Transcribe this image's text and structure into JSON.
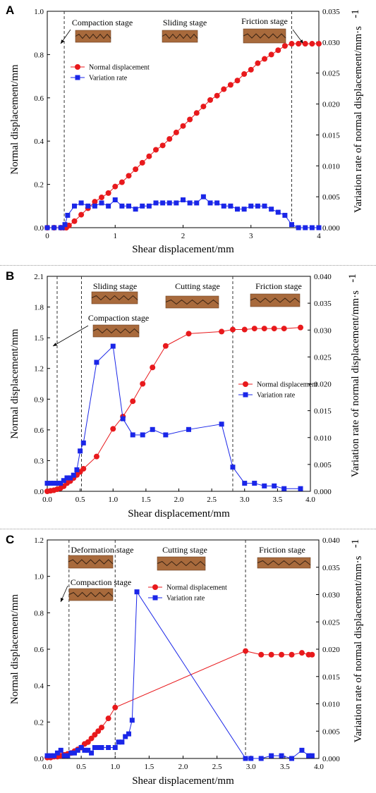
{
  "panels": [
    {
      "label": "A",
      "xlabel": "Shear displacement/mm",
      "ylabel_left": "Normal displacement/mm",
      "ylabel_right": "Variation rate of normal displacement/mm·s",
      "ylabel_right_sup": "-1",
      "stages": [
        "Compaction stage",
        "Sliding stage",
        "Friction stage"
      ],
      "legend": [
        "Normal displacement",
        "Variation rate"
      ]
    },
    {
      "label": "B",
      "xlabel": "Shear displacement/mm",
      "ylabel_left": "Normal displacement/mm",
      "ylabel_right": "Variation rate of normal displacement/mm·s",
      "ylabel_right_sup": "-1",
      "stages": [
        "Sliding stage",
        "Cutting stage",
        "Friction stage",
        "Compaction stage"
      ],
      "legend": [
        "Normal displacement",
        "Variation rate"
      ]
    },
    {
      "label": "C",
      "xlabel": "Shear displacement/mm",
      "ylabel_left": "Normal displacement/mm",
      "ylabel_right": "Variation rate of normal displacement/mm·s",
      "ylabel_right_sup": "-1",
      "stages": [
        "Deformation stage",
        "Cutting stage",
        "Friction stage",
        "Compaction stage"
      ],
      "legend": [
        "Normal displacement",
        "Variation rate"
      ]
    }
  ],
  "colors": {
    "normal": "#e8191c",
    "rate": "#1a26e8",
    "axis": "#000000",
    "rock": "#a86a3c"
  },
  "chart_data": [
    {
      "type": "line",
      "xlim": [
        0,
        4
      ],
      "ylim": [
        0,
        1.0
      ],
      "y2lim": [
        0,
        0.035
      ],
      "xticks": [
        "0",
        "1",
        "2",
        "3",
        "4"
      ],
      "yticks": [
        "0.0",
        "0.2",
        "0.4",
        "0.6",
        "0.8",
        "1.0"
      ],
      "y2ticks": [
        "0.000",
        "0.005",
        "0.010",
        "0.015",
        "0.020",
        "0.025",
        "0.030",
        "0.035"
      ],
      "stage_lines": [
        0.25,
        3.6
      ],
      "series": [
        {
          "name": "Normal displacement",
          "axis": "left",
          "x": [
            0,
            0.1,
            0.2,
            0.24,
            0.28,
            0.32,
            0.4,
            0.5,
            0.6,
            0.7,
            0.8,
            0.9,
            1.0,
            1.1,
            1.2,
            1.3,
            1.4,
            1.5,
            1.6,
            1.7,
            1.8,
            1.9,
            2.0,
            2.1,
            2.2,
            2.3,
            2.4,
            2.5,
            2.6,
            2.7,
            2.8,
            2.9,
            3.0,
            3.1,
            3.2,
            3.3,
            3.4,
            3.5,
            3.6,
            3.7,
            3.8,
            3.9,
            4.0
          ],
          "y": [
            0,
            0,
            0,
            0,
            0,
            0.01,
            0.03,
            0.06,
            0.09,
            0.12,
            0.14,
            0.16,
            0.19,
            0.21,
            0.24,
            0.27,
            0.3,
            0.33,
            0.36,
            0.38,
            0.41,
            0.44,
            0.47,
            0.5,
            0.53,
            0.56,
            0.59,
            0.61,
            0.64,
            0.66,
            0.68,
            0.71,
            0.73,
            0.76,
            0.78,
            0.8,
            0.82,
            0.84,
            0.85,
            0.85,
            0.85,
            0.85,
            0.85
          ]
        },
        {
          "name": "Variation rate",
          "axis": "right",
          "x": [
            0,
            0.1,
            0.2,
            0.22,
            0.26,
            0.3,
            0.4,
            0.5,
            0.6,
            0.7,
            0.8,
            0.9,
            1.0,
            1.1,
            1.2,
            1.3,
            1.4,
            1.5,
            1.6,
            1.7,
            1.8,
            1.9,
            2.0,
            2.1,
            2.2,
            2.3,
            2.4,
            2.5,
            2.6,
            2.7,
            2.8,
            2.9,
            3.0,
            3.1,
            3.2,
            3.3,
            3.4,
            3.5,
            3.6,
            3.7,
            3.8,
            3.9,
            4.0
          ],
          "y": [
            0,
            0,
            0,
            0,
            0.0005,
            0.002,
            0.0035,
            0.004,
            0.0035,
            0.0035,
            0.004,
            0.0035,
            0.0045,
            0.0035,
            0.0035,
            0.003,
            0.0035,
            0.0035,
            0.004,
            0.004,
            0.004,
            0.004,
            0.0045,
            0.004,
            0.004,
            0.005,
            0.004,
            0.004,
            0.0035,
            0.0035,
            0.003,
            0.003,
            0.0035,
            0.0035,
            0.0035,
            0.003,
            0.0025,
            0.002,
            0.0005,
            0,
            0,
            0,
            0
          ]
        }
      ]
    },
    {
      "type": "line",
      "xlim": [
        0,
        4.0
      ],
      "ylim": [
        0,
        2.1
      ],
      "y2lim": [
        0,
        0.04
      ],
      "xticks": [
        "0.0",
        "0.5",
        "1.0",
        "1.5",
        "2.0",
        "2.5",
        "3.0",
        "3.5",
        "4.0"
      ],
      "yticks": [
        "0.0",
        "0.3",
        "0.6",
        "0.9",
        "1.2",
        "1.5",
        "1.8",
        "2.1"
      ],
      "y2ticks": [
        "0.000",
        "0.005",
        "0.010",
        "0.015",
        "0.020",
        "0.025",
        "0.030",
        "0.035",
        "0.040"
      ],
      "stage_lines": [
        0.15,
        0.52,
        2.82
      ],
      "series": [
        {
          "name": "Normal displacement",
          "axis": "left",
          "x": [
            0,
            0.05,
            0.1,
            0.15,
            0.2,
            0.25,
            0.3,
            0.35,
            0.4,
            0.45,
            0.5,
            0.55,
            0.75,
            1.0,
            1.15,
            1.3,
            1.45,
            1.6,
            1.8,
            2.15,
            2.65,
            2.82,
            3.0,
            3.15,
            3.3,
            3.45,
            3.6,
            3.85
          ],
          "y": [
            0,
            0.005,
            0.01,
            0.02,
            0.03,
            0.05,
            0.08,
            0.1,
            0.13,
            0.16,
            0.19,
            0.22,
            0.34,
            0.61,
            0.73,
            0.88,
            1.05,
            1.21,
            1.42,
            1.54,
            1.56,
            1.58,
            1.58,
            1.59,
            1.59,
            1.59,
            1.59,
            1.6
          ]
        },
        {
          "name": "Variation rate",
          "axis": "right",
          "x": [
            0,
            0.05,
            0.1,
            0.15,
            0.2,
            0.25,
            0.3,
            0.35,
            0.4,
            0.45,
            0.5,
            0.55,
            0.75,
            1.0,
            1.15,
            1.3,
            1.45,
            1.6,
            1.8,
            2.15,
            2.65,
            2.82,
            3.0,
            3.15,
            3.3,
            3.45,
            3.6,
            3.85
          ],
          "y": [
            0.0015,
            0.0015,
            0.0015,
            0.0015,
            0.0015,
            0.002,
            0.0025,
            0.0025,
            0.003,
            0.004,
            0.0075,
            0.009,
            0.024,
            0.027,
            0.0135,
            0.0105,
            0.0105,
            0.0115,
            0.0105,
            0.0115,
            0.0125,
            0.0045,
            0.0015,
            0.0015,
            0.001,
            0.001,
            0.0005,
            0.0005
          ]
        }
      ]
    },
    {
      "type": "line",
      "xlim": [
        0,
        4.0
      ],
      "ylim": [
        0,
        1.2
      ],
      "y2lim": [
        0,
        0.04
      ],
      "xticks": [
        "0.0",
        "0.5",
        "1.0",
        "1.5",
        "2.0",
        "2.5",
        "3.0",
        "3.5",
        "4.0"
      ],
      "yticks": [
        "0.0",
        "0.2",
        "0.4",
        "0.6",
        "0.8",
        "1.0",
        "1.2"
      ],
      "y2ticks": [
        "0.000",
        "0.005",
        "0.010",
        "0.015",
        "0.020",
        "0.025",
        "0.030",
        "0.035",
        "0.040"
      ],
      "stage_lines": [
        0.32,
        1.0,
        2.92
      ],
      "series": [
        {
          "name": "Normal displacement",
          "axis": "left",
          "x": [
            0,
            0.05,
            0.1,
            0.15,
            0.2,
            0.25,
            0.3,
            0.35,
            0.4,
            0.45,
            0.5,
            0.55,
            0.6,
            0.65,
            0.7,
            0.75,
            0.8,
            0.9,
            1.0,
            2.92,
            3.15,
            3.3,
            3.45,
            3.6,
            3.75,
            3.85,
            3.9
          ],
          "y": [
            0.005,
            0.005,
            0.01,
            0.01,
            0.015,
            0.02,
            0.025,
            0.03,
            0.04,
            0.05,
            0.06,
            0.08,
            0.09,
            0.11,
            0.13,
            0.15,
            0.17,
            0.22,
            0.28,
            0.59,
            0.57,
            0.57,
            0.57,
            0.57,
            0.58,
            0.57,
            0.57
          ]
        },
        {
          "name": "Variation rate",
          "axis": "right",
          "x": [
            0,
            0.05,
            0.1,
            0.15,
            0.2,
            0.25,
            0.3,
            0.35,
            0.4,
            0.45,
            0.5,
            0.55,
            0.6,
            0.65,
            0.7,
            0.75,
            0.8,
            0.9,
            1.0,
            1.05,
            1.1,
            1.15,
            1.2,
            1.25,
            1.32,
            2.92,
            3.0,
            3.15,
            3.3,
            3.45,
            3.6,
            3.75,
            3.85,
            3.9
          ],
          "y": [
            0.0005,
            0.0005,
            0.0005,
            0.001,
            0.0015,
            0.0005,
            0.0005,
            0.001,
            0.001,
            0.0015,
            0.002,
            0.0015,
            0.0015,
            0.001,
            0.002,
            0.002,
            0.002,
            0.002,
            0.002,
            0.003,
            0.003,
            0.004,
            0.0045,
            0.007,
            0.0305,
            0,
            0,
            0,
            0.0005,
            0.0005,
            0,
            0.0015,
            0.0005,
            0.0005
          ]
        }
      ]
    }
  ]
}
